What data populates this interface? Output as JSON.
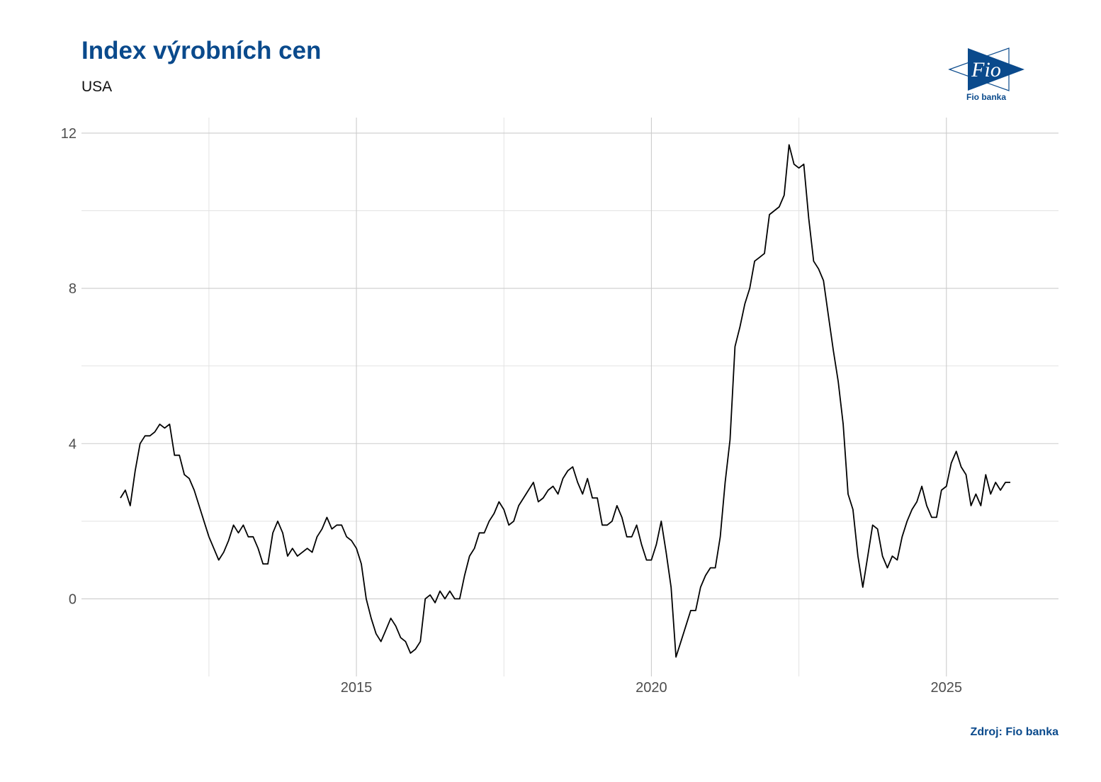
{
  "header": {
    "title": "Index výrobních cen",
    "subtitle": "USA"
  },
  "logo": {
    "name": "Fio banka",
    "mark": "Fio",
    "color": "#0a4a8c"
  },
  "footer": {
    "source": "Zdroj: Fio banka"
  },
  "chart_data": {
    "type": "line",
    "title": "Index výrobních cen",
    "subtitle": "USA",
    "xlabel": "",
    "ylabel": "",
    "grid": true,
    "line_color": "#000000",
    "x_ticks": [
      2015,
      2020,
      2025
    ],
    "y_ticks": [
      0,
      4,
      8,
      12
    ],
    "xlim": [
      2010.34,
      2026.9
    ],
    "ylim": [
      -2.0,
      12.4
    ],
    "x_start": "2011-01",
    "frequency": "monthly",
    "series": [
      {
        "name": "",
        "values": [
          2.6,
          2.8,
          2.4,
          3.3,
          4.0,
          4.2,
          4.2,
          4.3,
          4.5,
          4.4,
          4.5,
          3.7,
          3.7,
          3.2,
          3.1,
          2.8,
          2.4,
          2.0,
          1.6,
          1.3,
          1.0,
          1.2,
          1.5,
          1.9,
          1.7,
          1.9,
          1.6,
          1.6,
          1.3,
          0.9,
          0.9,
          1.7,
          2.0,
          1.7,
          1.1,
          1.3,
          1.1,
          1.2,
          1.3,
          1.2,
          1.6,
          1.8,
          2.1,
          1.8,
          1.9,
          1.9,
          1.6,
          1.5,
          1.3,
          0.9,
          0.0,
          -0.5,
          -0.9,
          -1.1,
          -0.8,
          -0.5,
          -0.7,
          -1.0,
          -1.1,
          -1.4,
          -1.3,
          -1.1,
          0.0,
          0.1,
          -0.1,
          0.2,
          0.0,
          0.2,
          0.0,
          0.0,
          0.6,
          1.1,
          1.3,
          1.7,
          1.7,
          2.0,
          2.2,
          2.5,
          2.3,
          1.9,
          2.0,
          2.4,
          2.6,
          2.8,
          3.0,
          2.5,
          2.6,
          2.8,
          2.9,
          2.7,
          3.1,
          3.3,
          3.4,
          3.0,
          2.7,
          3.1,
          2.6,
          2.6,
          1.9,
          1.9,
          2.0,
          2.4,
          2.1,
          1.6,
          1.6,
          1.9,
          1.4,
          1.0,
          1.0,
          1.4,
          2.0,
          1.2,
          0.3,
          -1.5,
          -1.1,
          -0.7,
          -0.3,
          -0.3,
          0.3,
          0.6,
          0.8,
          0.8,
          1.6,
          3.0,
          4.1,
          6.5,
          7.0,
          7.6,
          8.0,
          8.7,
          8.8,
          8.9,
          9.9,
          10.0,
          10.1,
          10.4,
          11.7,
          11.2,
          11.1,
          11.2,
          9.8,
          8.7,
          8.5,
          8.2,
          7.3,
          6.4,
          5.6,
          4.5,
          2.7,
          2.3,
          1.1,
          0.3,
          1.1,
          1.9,
          1.8,
          1.1,
          0.8,
          1.1,
          1.0,
          1.6,
          2.0,
          2.3,
          2.5,
          2.9,
          2.4,
          2.1,
          2.1,
          2.8,
          2.9,
          3.5,
          3.8,
          3.4,
          3.2,
          2.4,
          2.7,
          2.4,
          3.2,
          2.7,
          3.0,
          2.8,
          3.0,
          3.0
        ]
      }
    ]
  }
}
